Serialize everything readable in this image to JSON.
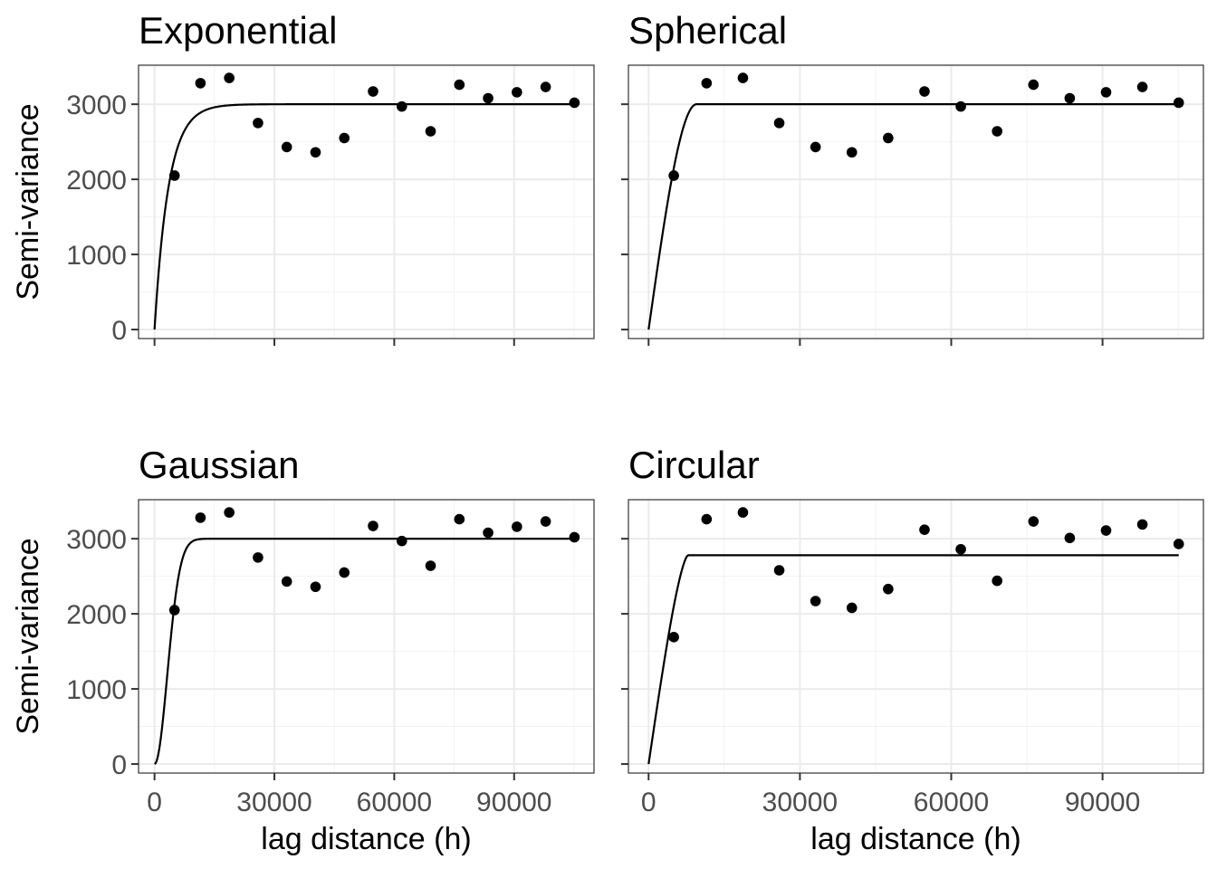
{
  "figure": {
    "x_title": "lag distance (h)",
    "y_title": "Semi-variance"
  },
  "chart_data": [
    {
      "type": "scatter",
      "title": "Exponential",
      "xlabel": "",
      "ylabel": "Semi-variance",
      "xlim": [
        -4000,
        110000
      ],
      "ylim": [
        -120,
        3520
      ],
      "x_ticks": [
        0,
        30000,
        60000,
        90000
      ],
      "y_ticks": [
        0,
        1000,
        2000,
        3000
      ],
      "grid": true,
      "show_x_labels": false,
      "show_y_labels": true,
      "points": {
        "x": [
          5000,
          11500,
          18700,
          25900,
          33100,
          40300,
          47500,
          54700,
          61900,
          69100,
          76300,
          83500,
          90700,
          97900,
          105100
        ],
        "y": [
          2050,
          3280,
          3350,
          2750,
          2430,
          2360,
          2550,
          3170,
          2970,
          2640,
          3260,
          3080,
          3160,
          3230,
          3020
        ]
      },
      "model": {
        "kind": "exponential",
        "nugget": 0,
        "sill": 3000,
        "range": 3500,
        "x_end": 105100
      }
    },
    {
      "type": "scatter",
      "title": "Spherical",
      "xlabel": "",
      "ylabel": "",
      "xlim": [
        -4000,
        110000
      ],
      "ylim": [
        -120,
        3520
      ],
      "x_ticks": [
        0,
        30000,
        60000,
        90000
      ],
      "y_ticks": [
        0,
        1000,
        2000,
        3000
      ],
      "grid": true,
      "show_x_labels": false,
      "show_y_labels": false,
      "points": {
        "x": [
          5000,
          11500,
          18700,
          25900,
          33100,
          40300,
          47500,
          54700,
          61900,
          69100,
          76300,
          83500,
          90700,
          97900,
          105100
        ],
        "y": [
          2050,
          3280,
          3350,
          2750,
          2430,
          2360,
          2550,
          3170,
          2970,
          2640,
          3260,
          3080,
          3160,
          3230,
          3020
        ]
      },
      "model": {
        "kind": "spherical",
        "nugget": 0,
        "sill": 3000,
        "range": 9500,
        "x_end": 105100
      }
    },
    {
      "type": "scatter",
      "title": "Gaussian",
      "xlabel": "lag distance (h)",
      "ylabel": "Semi-variance",
      "xlim": [
        -4000,
        110000
      ],
      "ylim": [
        -120,
        3520
      ],
      "x_ticks": [
        0,
        30000,
        60000,
        90000
      ],
      "y_ticks": [
        0,
        1000,
        2000,
        3000
      ],
      "grid": true,
      "show_x_labels": true,
      "show_y_labels": true,
      "points": {
        "x": [
          5000,
          11500,
          18700,
          25900,
          33100,
          40300,
          47500,
          54700,
          61900,
          69100,
          76300,
          83500,
          90700,
          97900,
          105100
        ],
        "y": [
          2050,
          3280,
          3350,
          2750,
          2430,
          2360,
          2550,
          3170,
          2970,
          2640,
          3260,
          3080,
          3160,
          3230,
          3020
        ]
      },
      "model": {
        "kind": "gaussian",
        "nugget": 0,
        "sill": 3000,
        "range": 4500,
        "x_end": 105100
      }
    },
    {
      "type": "scatter",
      "title": "Circular",
      "xlabel": "lag distance (h)",
      "ylabel": "",
      "xlim": [
        -4000,
        110000
      ],
      "ylim": [
        -120,
        3520
      ],
      "x_ticks": [
        0,
        30000,
        60000,
        90000
      ],
      "y_ticks": [
        0,
        1000,
        2000,
        3000
      ],
      "grid": true,
      "show_x_labels": true,
      "show_y_labels": false,
      "points": {
        "x": [
          5000,
          11500,
          18700,
          25900,
          33100,
          40300,
          47500,
          54700,
          61900,
          69100,
          76300,
          83500,
          90700,
          97900,
          105100
        ],
        "y": [
          1690,
          3260,
          3350,
          2580,
          2170,
          2080,
          2330,
          3120,
          2860,
          2440,
          3230,
          3010,
          3110,
          3190,
          2930
        ]
      },
      "model": {
        "kind": "circular",
        "nugget": 0,
        "sill": 2780,
        "range": 7800,
        "x_end": 105100
      }
    }
  ]
}
